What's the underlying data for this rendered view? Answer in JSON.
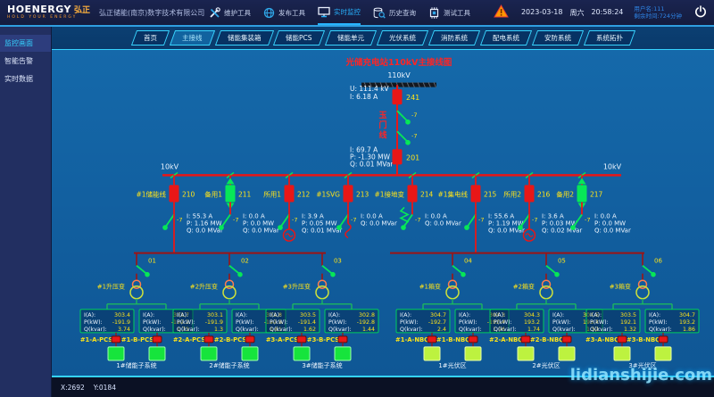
{
  "header": {
    "logo_en": "HOENERGY",
    "logo_cn": "弘正",
    "logo_sub": "HOLD YOUR ENERGY",
    "company": "弘正储能(南京)数字技术有限公司",
    "tools": [
      {
        "label": "维护工具",
        "icon": "wrench-icon",
        "active": false
      },
      {
        "label": "发布工具",
        "icon": "globe-icon",
        "active": false
      },
      {
        "label": "实时监控",
        "icon": "monitor-icon",
        "active": true
      },
      {
        "label": "历史查询",
        "icon": "history-icon",
        "active": false
      },
      {
        "label": "测试工具",
        "icon": "chip-icon",
        "active": false
      }
    ],
    "date": "2023-03-18",
    "weekday": "周六",
    "time": "20:58:24",
    "user_line1": "用户名:111",
    "user_line2": "剩余时间:724分钟"
  },
  "sidebar": {
    "items": [
      {
        "id": "monitor-screens",
        "label": "监控画面",
        "active": true
      },
      {
        "id": "smart-alarms",
        "label": "智能告警",
        "active": false
      },
      {
        "id": "realtime-data",
        "label": "实时数据",
        "active": false
      }
    ]
  },
  "tabs": [
    {
      "label": "首页",
      "active": false
    },
    {
      "label": "主接线",
      "active": true
    },
    {
      "label": "储能集装箱",
      "active": false
    },
    {
      "label": "储能PCS",
      "active": false
    },
    {
      "label": "储能单元",
      "active": false
    },
    {
      "label": "光伏系统",
      "active": false
    },
    {
      "label": "消防系统",
      "active": false
    },
    {
      "label": "配电系统",
      "active": false
    },
    {
      "label": "安防系统",
      "active": false
    },
    {
      "label": "系统拓扑",
      "active": false
    }
  ],
  "diagram": {
    "title": "光储充电站110kV主接线图",
    "incoming": {
      "bus_label": "110kV",
      "u": "U: 111.4 kV",
      "i": "I: 6.18 A",
      "breaker1": "241",
      "line_name": "玉门线",
      "switch_labels": [
        "-7",
        "-7"
      ],
      "i2": "I: 69.7 A",
      "p2": "P: -1.30 MW",
      "q2": "Q: 0.01 MVar",
      "breaker2": "201"
    },
    "bus10kv": {
      "label_left": "10kV",
      "label_right": "10kV"
    },
    "feeders": [
      {
        "name": "#1储能线",
        "code": "210",
        "state": "closed",
        "switch": "-7",
        "device": "none",
        "feeds_down": true,
        "metrics": [
          "I: 55.3 A",
          "P: 1.16 MW",
          "Q: 0.0  MVar"
        ]
      },
      {
        "name": "备用1",
        "code": "211",
        "state": "open",
        "switch": "-7",
        "device": "none",
        "feeds_down": false,
        "metrics": [
          "I: 0.0 A",
          "P: 0.0 MW",
          "Q: 0.0 MVar"
        ]
      },
      {
        "name": "所用1",
        "code": "212",
        "state": "closed",
        "switch": "-7",
        "device": "transformer",
        "feeds_down": false,
        "metrics": [
          "I: 3.9  A",
          "P: 0.05 MW",
          "Q: 0.01 MVar"
        ]
      },
      {
        "name": "#1SVG",
        "code": "213",
        "state": "closed",
        "switch": "-7",
        "device": "svg",
        "feeds_down": false,
        "metrics": [
          "I: 0.0 A",
          "Q: 0.0 MVar"
        ]
      },
      {
        "name": "#1接地变",
        "code": "214",
        "state": "closed",
        "switch": "-7",
        "device": "ground-transformer",
        "feeds_down": false,
        "metrics": [
          "I: 0.0 A",
          "Q: 0.0 MVar"
        ]
      },
      {
        "name": "#1集电线",
        "code": "215",
        "state": "closed",
        "switch": "-7",
        "device": "none",
        "feeds_down": true,
        "metrics": [
          "I: 55.6 A",
          "P: 1.19 MW",
          "Q: 0.0  MVar"
        ]
      },
      {
        "name": "所用2",
        "code": "216",
        "state": "closed",
        "switch": "-7",
        "device": "transformer",
        "feeds_down": false,
        "metrics": [
          "I: 3.6  A",
          "P: 0.03 MW",
          "Q: 0.02 MVar"
        ]
      },
      {
        "name": "备用2",
        "code": "217",
        "state": "open",
        "switch": "-7",
        "device": "none",
        "feeds_down": false,
        "metrics": [
          "I: 0.0 A",
          "P: 0.0 MW",
          "Q: 0.0 MVar"
        ]
      }
    ],
    "metric_keys": [
      "I(A):",
      "P(kW):",
      "Q(kvar):"
    ],
    "ess_section": {
      "groups": [
        {
          "switch_code": "01",
          "transformer": "#1升压变",
          "subsystem": "1#储能子系统",
          "branches": [
            {
              "label": "#1-A-PCS",
              "ia": "303.4",
              "p": "-191.9",
              "q": "3.74"
            },
            {
              "label": "#1-B-PCS",
              "ia": "303.7",
              "p": "-192.2",
              "q": "1.72"
            }
          ]
        },
        {
          "switch_code": "02",
          "transformer": "#2升压变",
          "subsystem": "2#储能子系统",
          "branches": [
            {
              "label": "#2-A-PCS",
              "ia": "303.1",
              "p": "-191.9",
              "q": "1.3"
            },
            {
              "label": "#2-B-PCS",
              "ia": "302.8",
              "p": "-192.8",
              "q": "1.61"
            }
          ]
        },
        {
          "switch_code": "03",
          "transformer": "#3升压变",
          "subsystem": "3#储能子系统",
          "branches": [
            {
              "label": "#3-A-PCS",
              "ia": "303.5",
              "p": "-191.4",
              "q": "1.62"
            },
            {
              "label": "#3-B-PCS",
              "ia": "302.8",
              "p": "-192.8",
              "q": "1.44"
            }
          ]
        }
      ]
    },
    "pv_section": {
      "groups": [
        {
          "switch_code": "04",
          "transformer": "#1箱变",
          "subsystem": "1#光伏区",
          "branches": [
            {
              "label": "#1-A-NBQ",
              "ia": "304.7",
              "p": "-192.7",
              "q": "2.4"
            },
            {
              "label": "#1-B-NBQ",
              "ia": "304.3",
              "p": "-192.4",
              "q": "1.96"
            }
          ]
        },
        {
          "switch_code": "05",
          "transformer": "#2箱变",
          "subsystem": "2#光伏区",
          "branches": [
            {
              "label": "#2-A-NBQ",
              "ia": "304.3",
              "p": "193.2",
              "q": "1.74"
            },
            {
              "label": "#2-B-NBQ",
              "ia": "304.5",
              "p": "193.4",
              "q": "1.52"
            }
          ]
        },
        {
          "switch_code": "06",
          "transformer": "#3箱变",
          "subsystem": "3#光伏区",
          "branches": [
            {
              "label": "#3-A-NBQ",
              "ia": "303.5",
              "p": "192.1",
              "q": "1.32"
            },
            {
              "label": "#3-B-NBQ",
              "ia": "304.7",
              "p": "193.2",
              "q": "1.86"
            }
          ]
        }
      ]
    }
  },
  "statusbar": {
    "coords_x": "X:2692",
    "coords_y": "Y:0184"
  },
  "watermark": "lidianshijie.com"
}
